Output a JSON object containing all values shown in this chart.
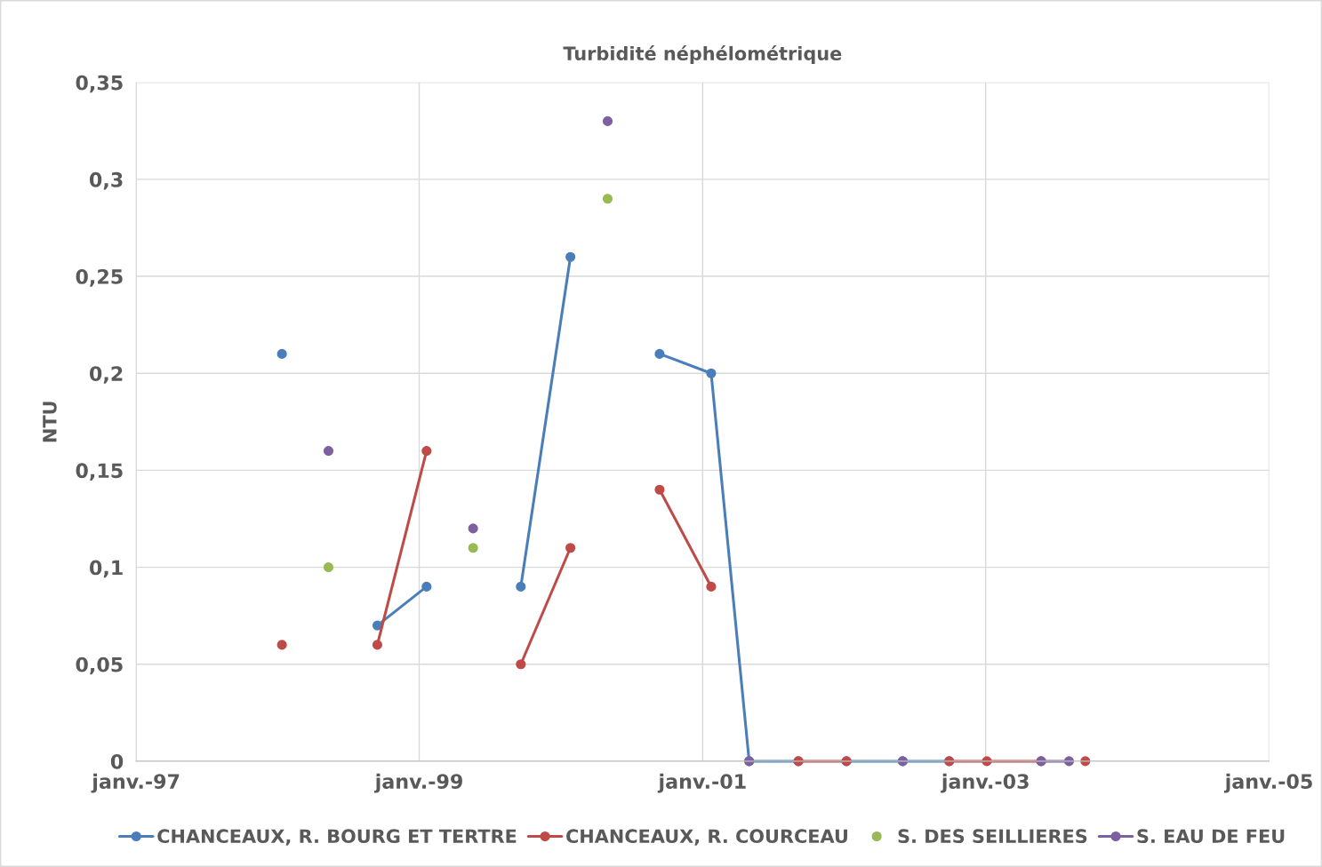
{
  "chart_data": {
    "type": "line",
    "title": "Turbidité néphélométrique",
    "ylabel": "NTU",
    "xlim": [
      "1997-01",
      "2005-01"
    ],
    "xticks": [
      {
        "value": "1997-01",
        "label": "janv.-97"
      },
      {
        "value": "1999-01",
        "label": "janv.-99"
      },
      {
        "value": "2001-01",
        "label": "janv.-01"
      },
      {
        "value": "2003-01",
        "label": "janv.-03"
      },
      {
        "value": "2005-01",
        "label": "janv.-05"
      }
    ],
    "ylim": [
      0,
      0.35
    ],
    "yticks": [
      0,
      {
        "value": 0.05,
        "label": "0,05"
      },
      {
        "value": 0.1,
        "label": "0,1"
      },
      {
        "value": 0.15,
        "label": "0,15"
      },
      {
        "value": 0.2,
        "label": "0,2"
      },
      {
        "value": 0.25,
        "label": "0,25"
      },
      {
        "value": 0.3,
        "label": "0,3"
      },
      {
        "value": 0.35,
        "label": "0,35"
      }
    ],
    "grid": true,
    "legend": "bottom",
    "marker": "circle",
    "line_style": "solid",
    "series": [
      {
        "name": "CHANCEAUX, R. BOURG ET TERTRE",
        "color": "#4a7ebb",
        "x": [
          "1998-01-12",
          "1998-05-12",
          "1998-09-15",
          "1999-01-20",
          "1999-05-20",
          "1999-09-20",
          "2000-01-26",
          "2000-05-01",
          "2000-09-12",
          "2001-01-23",
          "2001-05-01",
          "2001-09-05",
          "2001-11-01",
          "2002-01-07",
          "2002-06-01",
          "2002-09-29"
        ],
        "values": [
          0.21,
          null,
          0.07,
          0.09,
          null,
          0.09,
          0.26,
          null,
          0.21,
          0.2,
          0,
          0,
          null,
          0,
          0,
          0
        ]
      },
      {
        "name": "CHANCEAUX, R. COURCEAU",
        "color": "#be4b48",
        "x": [
          "1998-01-12",
          "1998-05-12",
          "1998-09-15",
          "1999-01-20",
          "1999-05-20",
          "1999-09-20",
          "2000-01-26",
          "2000-05-01",
          "2000-09-12",
          "2001-01-23",
          "2001-05-01",
          "2001-09-05",
          "2002-01-07",
          "2002-06-01",
          "2002-09-29",
          "2003-01-04",
          "2003-05-24",
          "2003-08-04",
          "2003-09-15"
        ],
        "values": [
          0.06,
          null,
          0.06,
          0.16,
          null,
          0.05,
          0.11,
          null,
          0.14,
          0.09,
          null,
          0,
          0,
          null,
          0,
          0,
          0,
          null,
          0
        ]
      },
      {
        "name": "S. DES SEILLIERES",
        "type": "scatter",
        "color": "#98b954",
        "x": [
          "1998-05-12",
          "1998-09-15",
          "1999-05-20",
          "1999-09-20",
          "2000-05-01"
        ],
        "values": [
          0.1,
          null,
          0.11,
          null,
          0.29
        ]
      },
      {
        "name": "S. EAU DE FEU",
        "color": "#7d60a0",
        "x": [
          "1998-05-12",
          "1998-09-15",
          "1999-05-20",
          "1999-09-20",
          "2000-05-01",
          "2000-09-12",
          "2001-05-01",
          "2001-09-05",
          "2002-06-01",
          "2002-09-29",
          "2003-05-24",
          "2003-08-04"
        ],
        "values": [
          0.16,
          null,
          0.12,
          null,
          0.33,
          null,
          0,
          null,
          0,
          null,
          0,
          0
        ]
      }
    ]
  }
}
